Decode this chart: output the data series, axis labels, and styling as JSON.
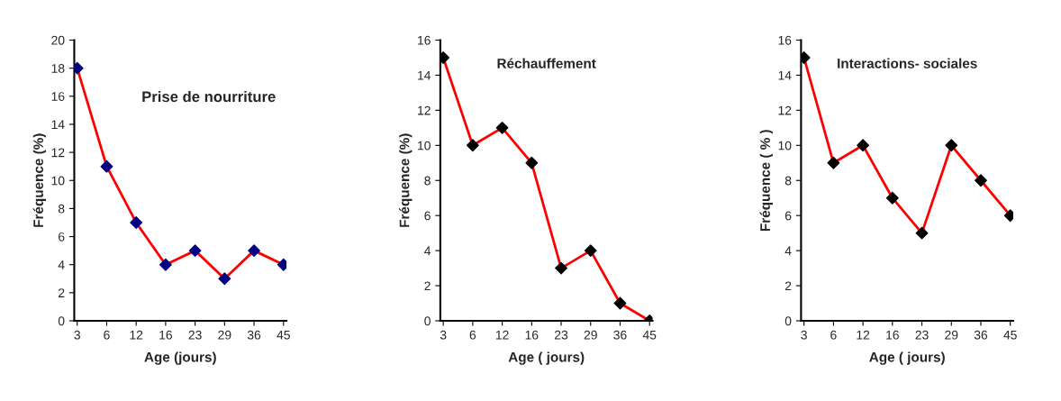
{
  "chart_data": [
    {
      "type": "line",
      "title": "Prise de nourriture",
      "xlabel": "Age (jours)",
      "ylabel": "Fréquence (%)",
      "categories": [
        "3",
        "6",
        "12",
        "16",
        "23",
        "29",
        "36",
        "45"
      ],
      "series": [
        {
          "color": "#ff0000",
          "colors": [
            "#000080",
            "#000080",
            "#000080",
            "#000080",
            "#000080",
            "#000080",
            "#000080",
            "#000080"
          ],
          "values": [
            18,
            11,
            7,
            4,
            5,
            3,
            5,
            4
          ]
        }
      ],
      "ylim": [
        0,
        20
      ],
      "yticks": [
        0,
        2,
        4,
        6,
        8,
        10,
        12,
        14,
        16,
        18,
        20
      ],
      "marker": "diamond",
      "grid": false,
      "legend": false
    },
    {
      "type": "line",
      "title": "Réchauffement",
      "xlabel": "Age ( jours)",
      "ylabel": "Fréquence (%)",
      "categories": [
        "3",
        "6",
        "12",
        "16",
        "23",
        "29",
        "36",
        "45"
      ],
      "series": [
        {
          "color": "#ff0000",
          "colors": [
            "#000000",
            "#000000",
            "#000000",
            "#000000",
            "#000000",
            "#000000",
            "#000000",
            "#000000"
          ],
          "values": [
            15,
            10,
            11,
            9,
            3,
            4,
            1,
            0
          ]
        }
      ],
      "ylim": [
        0,
        16
      ],
      "yticks": [
        0,
        2,
        4,
        6,
        8,
        10,
        12,
        14,
        16
      ],
      "marker": "diamond",
      "grid": false,
      "legend": false
    },
    {
      "type": "line",
      "title": "Interactions- sociales",
      "xlabel": "Age ( jours)",
      "ylabel": "Fréquence ( % )",
      "categories": [
        "3",
        "6",
        "12",
        "16",
        "23",
        "29",
        "36",
        "45"
      ],
      "series": [
        {
          "color": "#ff0000",
          "colors": [
            "#000000",
            "#000000",
            "#000000",
            "#000000",
            "#000000",
            "#000000",
            "#000000",
            "#000000"
          ],
          "values": [
            15,
            9,
            10,
            7,
            5,
            10,
            8,
            6
          ]
        }
      ],
      "ylim": [
        0,
        16
      ],
      "yticks": [
        0,
        2,
        4,
        6,
        8,
        10,
        12,
        14,
        16
      ],
      "marker": "diamond",
      "grid": false,
      "legend": false
    }
  ]
}
